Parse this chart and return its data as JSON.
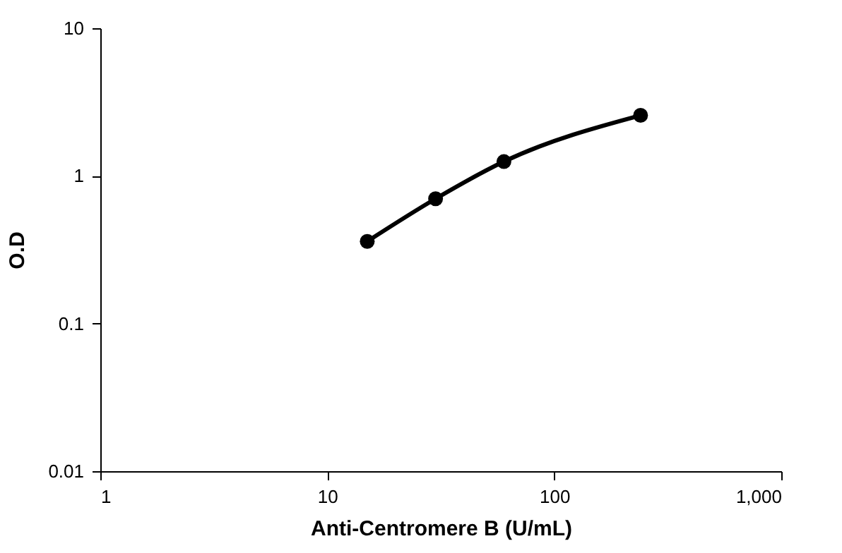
{
  "chart_data": {
    "type": "line",
    "xlabel": "Anti-Centromere B (U/mL)",
    "ylabel": "O.D",
    "x": [
      15,
      30,
      60,
      240
    ],
    "series": [
      {
        "color": "#000000",
        "values": [
          0.36,
          0.7,
          1.25,
          2.57
        ]
      }
    ],
    "log": "xy",
    "xlim": [
      1,
      1000
    ],
    "ylim": [
      0.01,
      10
    ],
    "xticks": [
      1,
      10,
      100,
      {
        "value": 1000,
        "label": "1,000"
      }
    ],
    "yticks": [
      0.01,
      0.1,
      1,
      10
    ],
    "marker": "circle",
    "line_style": "solid"
  }
}
